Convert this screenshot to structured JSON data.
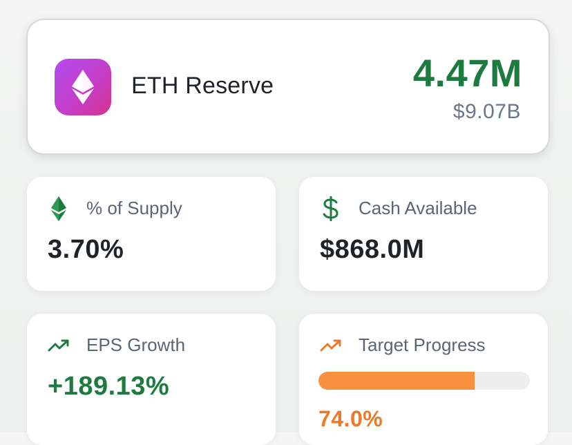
{
  "reserve": {
    "icon": "ethereum-icon",
    "title": "ETH Reserve",
    "amount": "4.47M",
    "usd_value": "$9.07B"
  },
  "stats": [
    {
      "icon": "ethereum-icon",
      "label": "% of Supply",
      "value": "3.70%"
    },
    {
      "icon": "dollar-icon",
      "label": "Cash Available",
      "value": "$868.0M"
    },
    {
      "icon": "trending-up-icon",
      "label": "EPS Growth",
      "value": "+189.13%"
    },
    {
      "icon": "trending-up-icon",
      "label": "Target Progress",
      "value": "74.0%",
      "progress_percent": 74
    }
  ],
  "colors": {
    "positive": "#1e7b3f",
    "accent": "#ea7a2a",
    "progress_fill": "#f7913d",
    "logo_gradient_start": "#b44cf0",
    "logo_gradient_end": "#d4318f"
  }
}
